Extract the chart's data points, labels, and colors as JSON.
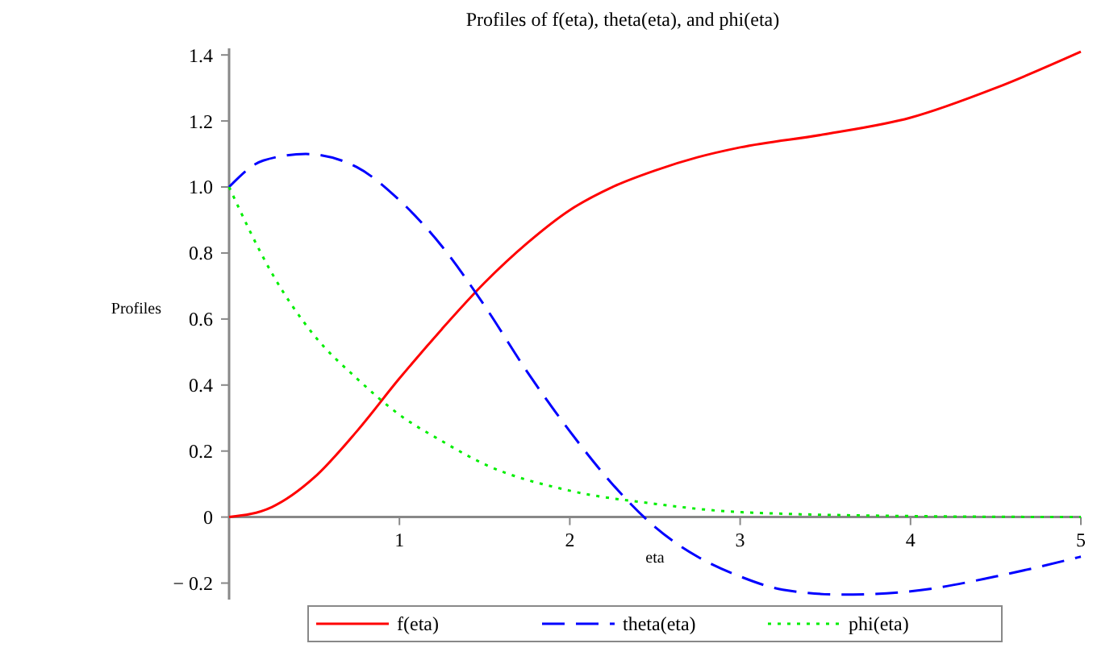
{
  "chart_data": {
    "type": "line",
    "title": "Profiles of f(eta), theta(eta), and phi(eta)",
    "xlabel": "eta",
    "ylabel": "Profiles",
    "xlim": [
      0,
      5
    ],
    "xticks": [
      1,
      2,
      3,
      4,
      5
    ],
    "ylim": [
      -0.25,
      1.42
    ],
    "yticks": [
      {
        "value": -0.2,
        "label": "− 0.2"
      },
      0,
      0.2,
      0.4,
      0.6,
      0.8,
      {
        "value": 1,
        "label": "1.0"
      },
      1.2,
      1.4
    ],
    "legend": "bottom",
    "grid": false,
    "series": [
      {
        "name": "f(eta)",
        "color": "#ff0000",
        "line_style": "solid",
        "x": [
          0,
          0.25,
          0.5,
          0.75,
          1,
          1.25,
          1.5,
          1.75,
          2,
          2.25,
          2.5,
          2.75,
          3,
          3.5,
          4,
          4.5,
          5
        ],
        "values": [
          0,
          0.03,
          0.12,
          0.26,
          0.42,
          0.57,
          0.71,
          0.83,
          0.93,
          1.0,
          1.05,
          1.09,
          1.12,
          1.16,
          1.21,
          1.3,
          1.41
        ]
      },
      {
        "name": "theta(eta)",
        "color": "#0000ff",
        "line_style": "dashed",
        "x": [
          0,
          0.2,
          0.45,
          0.75,
          1,
          1.25,
          1.5,
          1.75,
          2,
          2.25,
          2.5,
          2.75,
          3,
          3.25,
          3.6,
          4,
          4.5,
          5
        ],
        "values": [
          1,
          1.08,
          1.1,
          1.06,
          0.96,
          0.82,
          0.64,
          0.44,
          0.26,
          0.1,
          -0.03,
          -0.12,
          -0.18,
          -0.22,
          -0.235,
          -0.225,
          -0.18,
          -0.12
        ]
      },
      {
        "name": "phi(eta)",
        "color": "#00ee00",
        "line_style": "dotted",
        "x": [
          0,
          0.25,
          0.5,
          0.75,
          1,
          1.25,
          1.5,
          2,
          2.5,
          3,
          4,
          5
        ],
        "values": [
          1,
          0.74,
          0.55,
          0.42,
          0.31,
          0.23,
          0.16,
          0.08,
          0.04,
          0.015,
          0.003,
          0
        ]
      }
    ]
  }
}
